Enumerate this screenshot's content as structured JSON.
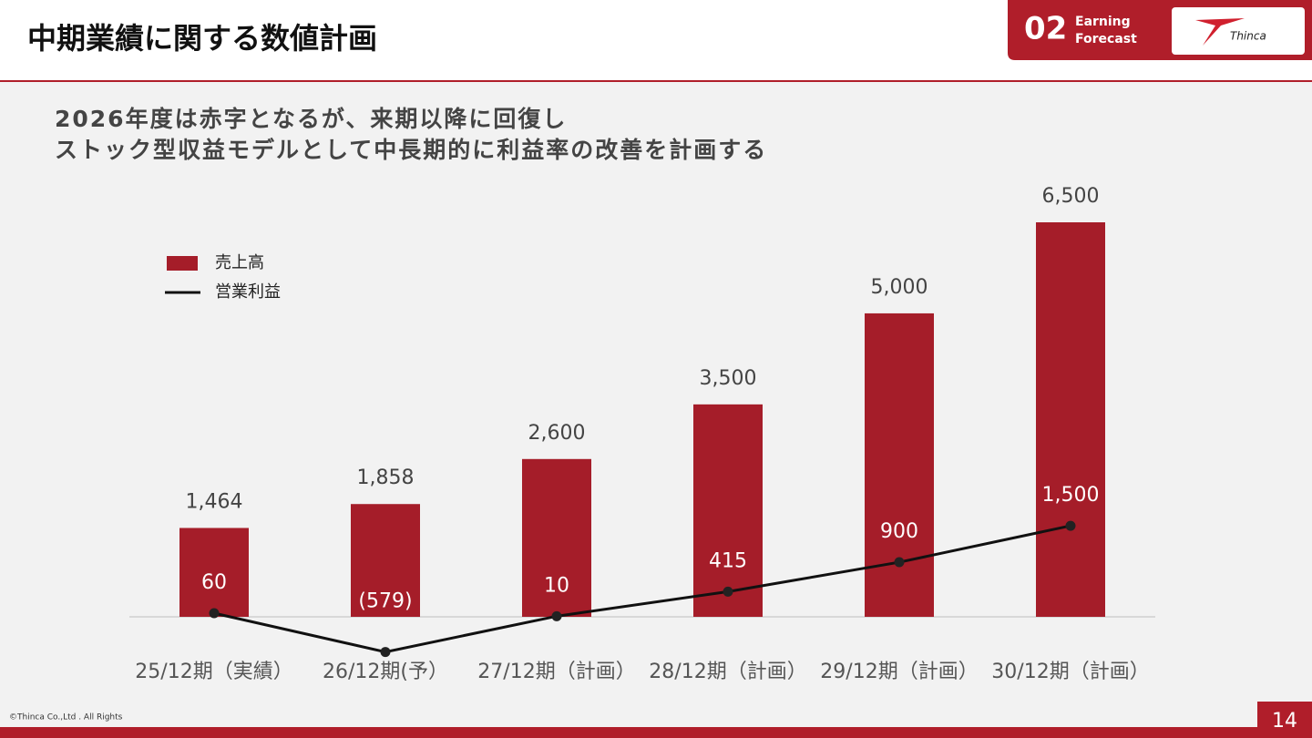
{
  "header": {
    "title": "中期業績に関する数値計画",
    "section_number": "02",
    "section_label": [
      "Earning",
      "Forecast"
    ],
    "logo": "Thinca"
  },
  "headline": [
    "2026年度は赤字となるが、来期以降に回復し",
    "ストック型収益モデルとして中長期的に利益率の改善を計画する"
  ],
  "chart_data": {
    "type": "bar-line",
    "categories": [
      "25/12期（実績）",
      "26/12期(予）",
      "27/12期（計画）",
      "28/12期（計画）",
      "29/12期（計画）",
      "30/12期（計画）"
    ],
    "series": [
      {
        "name": "売上高",
        "type": "bar",
        "color": "#a51d29",
        "values": [
          1464,
          1858,
          2600,
          3500,
          5000,
          6500
        ],
        "value_labels": [
          "1,464",
          "1,858",
          "2,600",
          "3,500",
          "5,000",
          "6,500"
        ]
      },
      {
        "name": "営業利益",
        "type": "line",
        "color": "#111111",
        "values": [
          60,
          -579,
          10,
          415,
          900,
          1500
        ],
        "value_labels": [
          "60",
          "(579)",
          "10",
          "415",
          "900",
          "1,500"
        ]
      }
    ],
    "legend": "upper left"
  },
  "footer": {
    "copyright": "©Thinca Co.,Ltd . All Rights",
    "page": "14"
  }
}
